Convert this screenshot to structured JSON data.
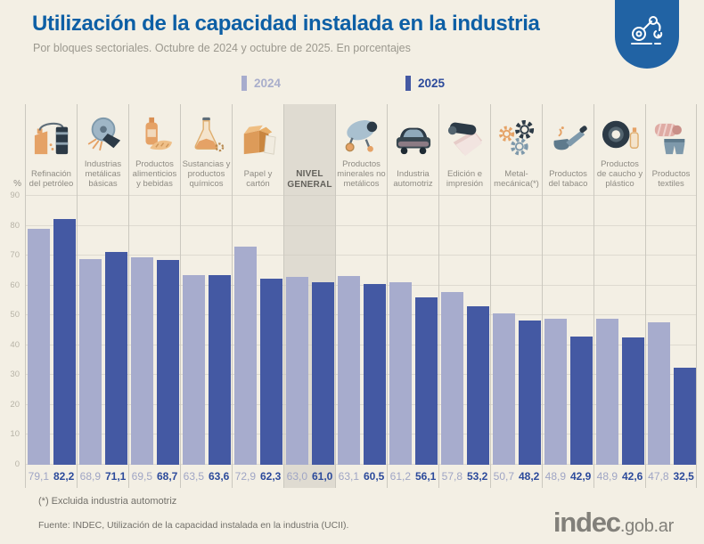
{
  "header": {
    "title": "Utilización de la capacidad instalada en la industria",
    "subtitle": "Por bloques sectoriales. Octubre de 2024 y octubre de 2025. En porcentajes"
  },
  "legend": [
    {
      "label": "2024",
      "color": "#A7ACCD"
    },
    {
      "label": "2025",
      "color": "#4459A3"
    }
  ],
  "chart_data": {
    "type": "bar",
    "title": "Utilización de la capacidad instalada en la industria",
    "ylabel": "%",
    "ylim": [
      0,
      90
    ],
    "y_ticks": [
      0,
      10,
      20,
      30,
      40,
      50,
      60,
      70,
      80,
      90
    ],
    "grid": true,
    "legend_position": "top-center",
    "value_format": "comma-decimal-1",
    "highlight_category": "NIVEL GENERAL",
    "categories": [
      "Refinación del petróleo",
      "Industrias metálicas básicas",
      "Productos alimenticios y bebidas",
      "Sustancias y productos químicos",
      "Papel y cartón",
      "NIVEL GENERAL",
      "Productos minerales no metálicos",
      "Industria automotriz",
      "Edición e impresión",
      "Metal-mecánica(*)",
      "Productos del tabaco",
      "Productos de caucho y plástico",
      "Productos textiles"
    ],
    "icons": [
      "oil-refinery-icon",
      "metal-grinding-icon",
      "food-beverage-icon",
      "chemical-flask-icon",
      "paper-carton-icon",
      null,
      "cement-mixer-icon",
      "car-icon",
      "printing-press-icon",
      "gears-icon",
      "tobacco-pipe-icon",
      "tire-rubber-icon",
      "textile-icon"
    ],
    "series": [
      {
        "name": "2024",
        "color": "#A7ACCD",
        "values": [
          79.1,
          68.9,
          69.5,
          63.5,
          72.9,
          63.0,
          63.1,
          61.2,
          57.8,
          50.7,
          48.9,
          48.9,
          47.8
        ]
      },
      {
        "name": "2025",
        "color": "#4459A3",
        "values": [
          82.2,
          71.1,
          68.7,
          63.6,
          62.3,
          61.0,
          60.5,
          56.1,
          53.2,
          48.2,
          42.9,
          42.6,
          32.5
        ]
      }
    ]
  },
  "footer": {
    "note": "(*) Excluida industria automotriz",
    "source": "Fuente: INDEC, Utilización de la capacidad instalada en la industria (UCII).",
    "logo_main": "indec",
    "logo_suffix": ".gob.ar"
  }
}
